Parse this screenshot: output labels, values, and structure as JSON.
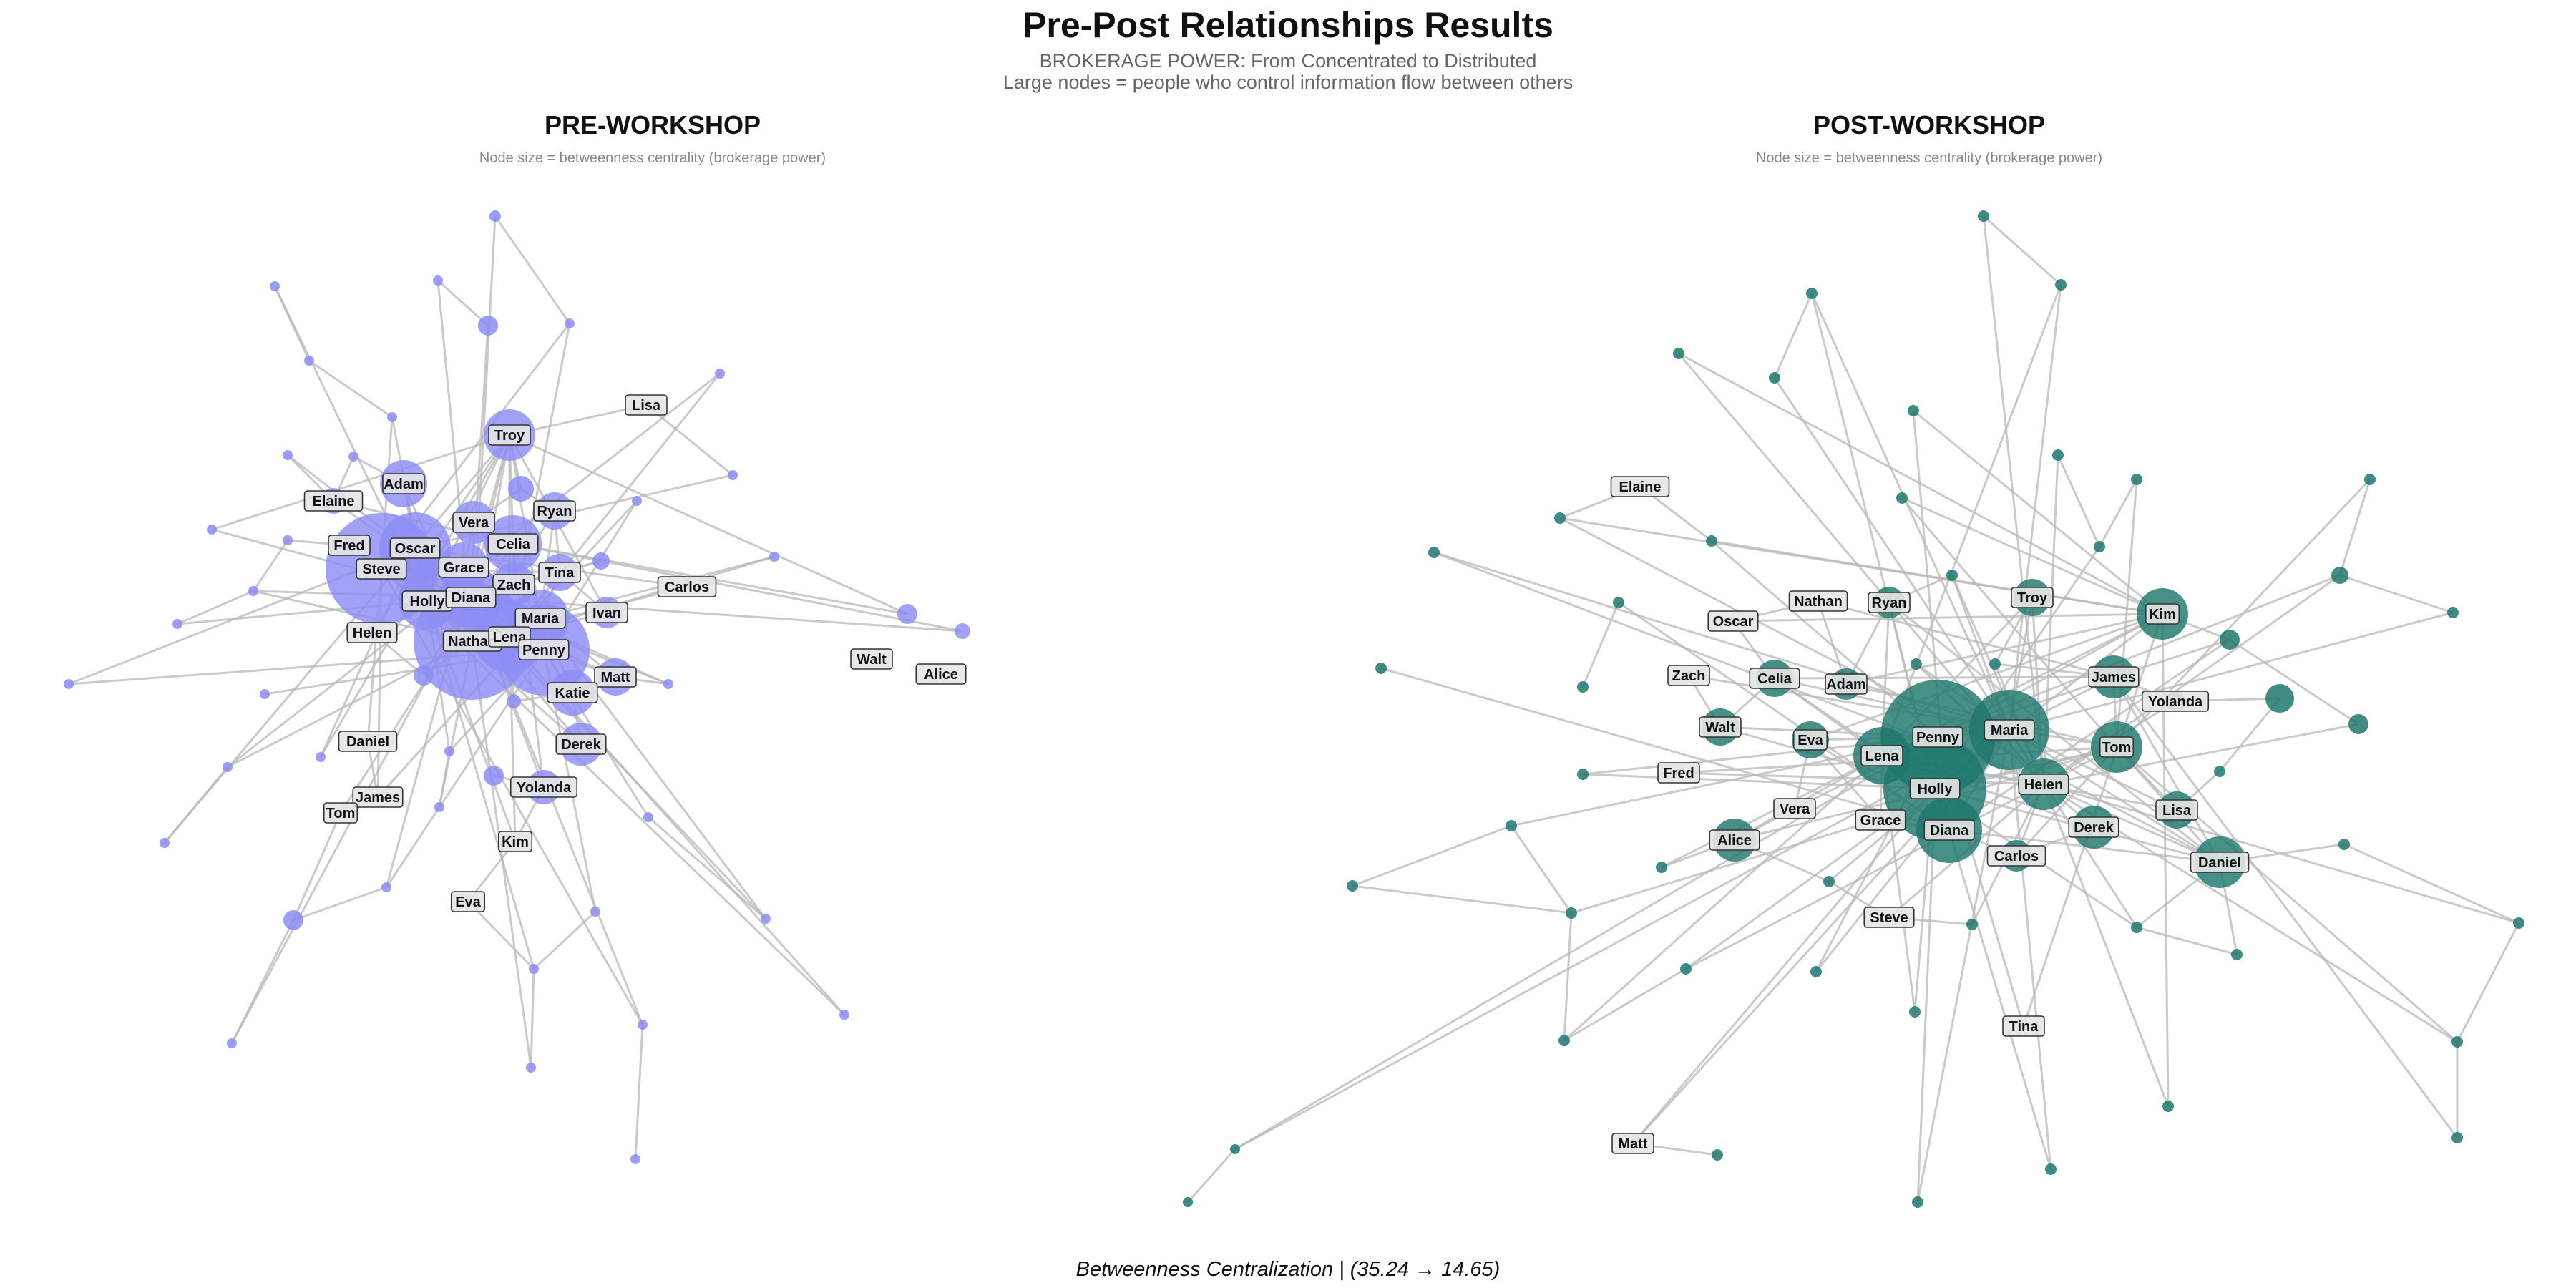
{
  "header": {
    "title": "Pre-Post Relationships Results",
    "subtitle_line1": "BROKERAGE POWER: From Concentrated to Distributed",
    "subtitle_line2": "Large nodes = people who control information flow between others"
  },
  "footer": {
    "caption": "Betweenness Centralization | (35.24 → 14.65)"
  },
  "colors": {
    "pre_node": "#8c8cf5",
    "post_node": "#1f776e",
    "edge": "#b8b8b8",
    "label_fill": "#e6e6e6"
  },
  "panels": [
    {
      "id": "pre",
      "title": "PRE-WORKSHOP",
      "subtitle": "Node size = betweenness centrality (brokerage power)",
      "labels": [
        "Troy",
        "Lisa",
        "Adam",
        "Elaine",
        "Vera",
        "Ryan",
        "Celia",
        "Fred",
        "Oscar",
        "Steve",
        "Grace",
        "Tina",
        "Zach",
        "Holly",
        "Diana",
        "Carlos",
        "Ivan",
        "Maria",
        "Helen",
        "Nathan",
        "Lena",
        "Penny",
        "Walt",
        "Alice",
        "Matt",
        "Katie",
        "Derek",
        "Daniel",
        "Yolanda",
        "James",
        "Tom",
        "Kim",
        "Eva"
      ]
    },
    {
      "id": "post",
      "title": "POST-WORKSHOP",
      "subtitle": "Node size = betweenness centrality (brokerage power)",
      "labels": [
        "Elaine",
        "Nathan",
        "Ryan",
        "Troy",
        "Kim",
        "Oscar",
        "Zach",
        "Celia",
        "Adam",
        "James",
        "Yolanda",
        "Penny",
        "Maria",
        "Walt",
        "Eva",
        "Lena",
        "Tom",
        "Fred",
        "Holly",
        "Helen",
        "Vera",
        "Grace",
        "Derek",
        "Lisa",
        "Alice",
        "Diana",
        "Carlos",
        "Daniel",
        "Steve",
        "Tina",
        "Matt"
      ]
    }
  ]
}
